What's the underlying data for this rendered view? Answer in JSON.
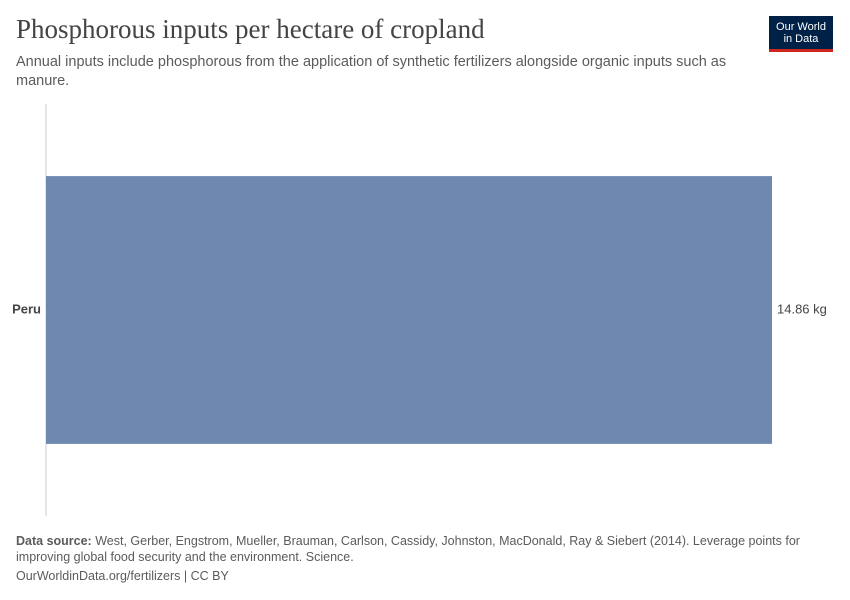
{
  "logo": [
    "Our World",
    "in Data"
  ],
  "chart_data": {
    "type": "bar",
    "orientation": "horizontal",
    "title": "Phosphorous inputs per hectare of cropland",
    "subtitle": "Annual inputs include phosphorous from the application of synthetic fertilizers alongside organic inputs such as manure.",
    "categories": [
      "Peru"
    ],
    "values": [
      14.86
    ],
    "value_labels": [
      "14.86 kg"
    ],
    "color": "#6f88b0",
    "source_label": "Data source:",
    "source": "West, Gerber, Engstrom, Mueller, Brauman, Carlson, Cassidy, Johnston, MacDonald, Ray & Siebert (2014). Leverage points for improving global food security and the environment. Science.",
    "footer": "OurWorldinData.org/fertilizers | CC BY"
  }
}
